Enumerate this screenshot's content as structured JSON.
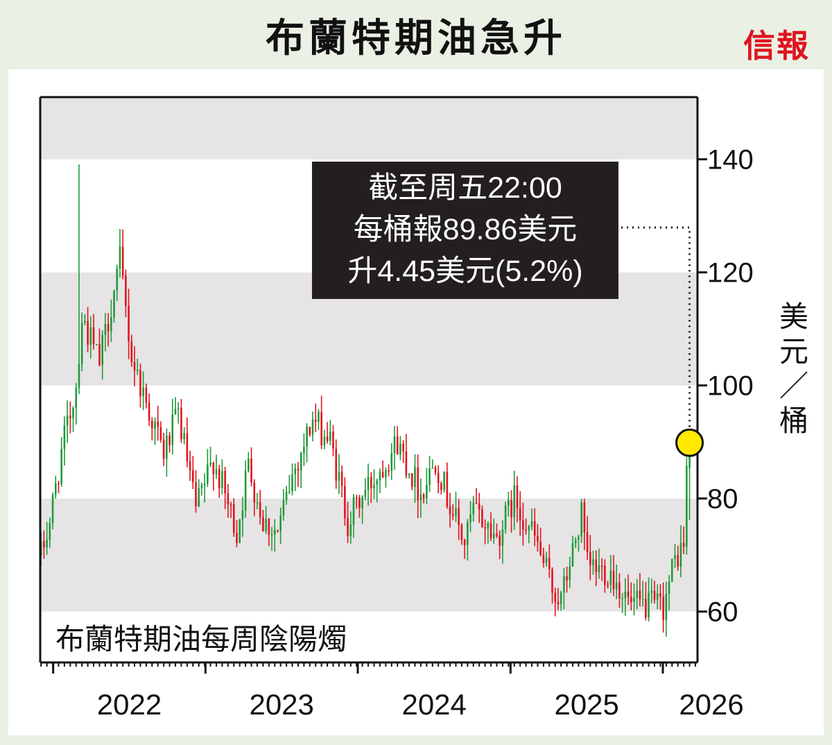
{
  "title": "布蘭特期油急升",
  "brand": "信報",
  "chart_data": {
    "type": "candlestick",
    "title": "布蘭特期油急升",
    "subtitle": "布蘭特期油每周陰陽燭",
    "ylabel": "美元／桶",
    "ylim": [
      51,
      151
    ],
    "yticks": [
      60,
      80,
      100,
      120,
      140
    ],
    "year_labels": [
      "2022",
      "2023",
      "2024",
      "2025",
      "2026"
    ],
    "bands": [
      [
        60,
        80
      ],
      [
        100,
        120
      ],
      [
        140,
        151
      ]
    ],
    "colors": {
      "up": "#1f9a3a",
      "down": "#e0141e",
      "band": "#e6e4e5",
      "marker": "#ffea00"
    },
    "callout": {
      "lines": [
        "截至周五22:00",
        "每桶報89.86美元",
        "升4.45美元(5.2%)"
      ],
      "price": 89.86
    },
    "anchors": [
      [
        "2021-12-03",
        70
      ],
      [
        "2021-12-24",
        76
      ],
      [
        "2022-01-21",
        88
      ],
      [
        "2022-02-25",
        100
      ],
      [
        "2022-03-11",
        112
      ],
      [
        "2022-04-22",
        104
      ],
      [
        "2022-06-10",
        122
      ],
      [
        "2022-07-08",
        105
      ],
      [
        "2022-08-12",
        97
      ],
      [
        "2022-09-23",
        88
      ],
      [
        "2022-10-28",
        95
      ],
      [
        "2022-12-09",
        78
      ],
      [
        "2023-01-20",
        87
      ],
      [
        "2023-03-17",
        74
      ],
      [
        "2023-04-14",
        86
      ],
      [
        "2023-05-19",
        76
      ],
      [
        "2023-06-23",
        74
      ],
      [
        "2023-07-28",
        84
      ],
      [
        "2023-09-15",
        94
      ],
      [
        "2023-10-27",
        90
      ],
      [
        "2023-12-08",
        76
      ],
      [
        "2024-01-26",
        82
      ],
      [
        "2024-04-05",
        90
      ],
      [
        "2024-05-31",
        81
      ],
      [
        "2024-07-05",
        87
      ],
      [
        "2024-08-09",
        79
      ],
      [
        "2024-09-13",
        72
      ],
      [
        "2024-10-04",
        78
      ],
      [
        "2024-11-29",
        73
      ],
      [
        "2025-01-10",
        80
      ],
      [
        "2025-02-28",
        73
      ],
      [
        "2025-04-11",
        64
      ],
      [
        "2025-05-02",
        62
      ],
      [
        "2025-06-20",
        77
      ],
      [
        "2025-07-04",
        68
      ],
      [
        "2025-08-29",
        67
      ],
      [
        "2025-10-17",
        61
      ],
      [
        "2025-12-19",
        61
      ],
      [
        "2026-01-02",
        61
      ],
      [
        "2026-01-30",
        69
      ],
      [
        "2026-02-20",
        72
      ],
      [
        "2026-02-27",
        85.41
      ]
    ],
    "last_week": {
      "date": "2026-03-06",
      "open": 85.41,
      "high": 90.05,
      "low": 76.2,
      "close": 89.86
    }
  }
}
